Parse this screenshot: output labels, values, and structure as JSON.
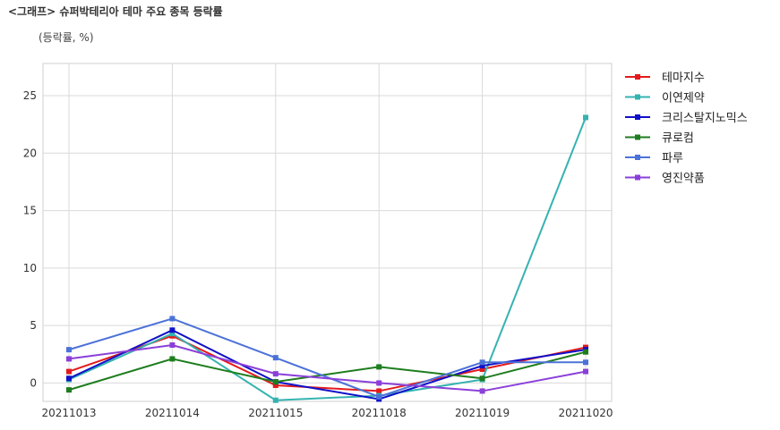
{
  "header": {
    "title": "<그래프> 슈퍼박테리아 테마 주요 종목 등락률",
    "unit": "(등락률, %)"
  },
  "chart_data": {
    "type": "line",
    "title": "<그래프> 슈퍼박테리아 테마 주요 종목 등락률",
    "ylabel": "(등락률, %)",
    "xlabel": "",
    "categories": [
      "20211013",
      "20211014",
      "20211015",
      "20211018",
      "20211019",
      "20211020"
    ],
    "ylim": [
      -1.6,
      27.8
    ],
    "yticks": [
      0,
      5,
      10,
      15,
      20,
      25
    ],
    "grid": true,
    "legend": "right",
    "series": [
      {
        "name": "테마지수",
        "color": "#e41a1c",
        "values": [
          1.0,
          4.1,
          -0.2,
          -0.7,
          1.2,
          3.1
        ]
      },
      {
        "name": "이연제약",
        "color": "#35b3b0",
        "values": [
          0.3,
          4.3,
          -1.5,
          -1.1,
          0.3,
          23.1
        ]
      },
      {
        "name": "크리스탈지노믹스",
        "color": "#1010c8",
        "values": [
          0.4,
          4.6,
          0.1,
          -1.4,
          1.5,
          2.9
        ]
      },
      {
        "name": "큐로컴",
        "color": "#1e7d1e",
        "values": [
          -0.6,
          2.1,
          0.1,
          1.4,
          0.4,
          2.7
        ]
      },
      {
        "name": "파루",
        "color": "#4c72d8",
        "values": [
          2.9,
          5.6,
          2.2,
          -1.2,
          1.8,
          1.8
        ]
      },
      {
        "name": "영진약품",
        "color": "#8b3fd9",
        "values": [
          2.1,
          3.3,
          0.8,
          0.0,
          -0.7,
          1.0
        ]
      }
    ]
  }
}
